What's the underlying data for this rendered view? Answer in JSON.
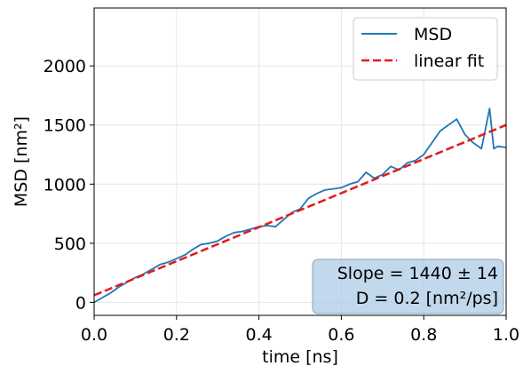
{
  "chart_data": {
    "type": "line",
    "xlabel": "time  [ns]",
    "ylabel": "MSD [nm²]",
    "xlim": [
      0.0,
      1.0
    ],
    "ylim": [
      -110,
      2490
    ],
    "xticks": [
      0.0,
      0.2,
      0.4,
      0.6,
      0.8,
      1.0
    ],
    "xtick_labels": [
      "0.0",
      "0.2",
      "0.4",
      "0.6",
      "0.8",
      "1.0"
    ],
    "yticks": [
      0,
      500,
      1000,
      1500,
      2000
    ],
    "ytick_labels": [
      "0",
      "500",
      "1000",
      "1500",
      "2000"
    ],
    "grid": true,
    "legend_position": "top-right",
    "series": [
      {
        "name": "MSD",
        "color": "#1f77b4",
        "style": "solid",
        "x": [
          0.0,
          0.02,
          0.04,
          0.06,
          0.08,
          0.1,
          0.12,
          0.14,
          0.16,
          0.18,
          0.2,
          0.22,
          0.24,
          0.26,
          0.28,
          0.3,
          0.32,
          0.34,
          0.36,
          0.38,
          0.4,
          0.42,
          0.44,
          0.46,
          0.48,
          0.5,
          0.52,
          0.54,
          0.56,
          0.58,
          0.6,
          0.62,
          0.64,
          0.66,
          0.68,
          0.7,
          0.72,
          0.74,
          0.76,
          0.78,
          0.8,
          0.82,
          0.84,
          0.86,
          0.88,
          0.9,
          0.92,
          0.94,
          0.96,
          0.97,
          0.98,
          1.0
        ],
        "y": [
          0,
          40,
          80,
          130,
          170,
          210,
          240,
          280,
          320,
          340,
          370,
          400,
          450,
          490,
          500,
          520,
          560,
          590,
          600,
          620,
          640,
          650,
          640,
          700,
          760,
          790,
          880,
          920,
          950,
          960,
          970,
          1000,
          1020,
          1100,
          1050,
          1080,
          1150,
          1120,
          1180,
          1200,
          1250,
          1350,
          1450,
          1500,
          1550,
          1420,
          1350,
          1300,
          1640,
          1300,
          1320,
          1310
        ]
      },
      {
        "name": "linear fit",
        "color": "#e31a1c",
        "style": "dashed",
        "x": [
          0.0,
          1.0
        ],
        "y": [
          60,
          1500
        ]
      }
    ],
    "annotation": {
      "slope": "Slope = 1440 ± 14",
      "diffusion": "D = 0.2  [nm²/ps]"
    }
  }
}
